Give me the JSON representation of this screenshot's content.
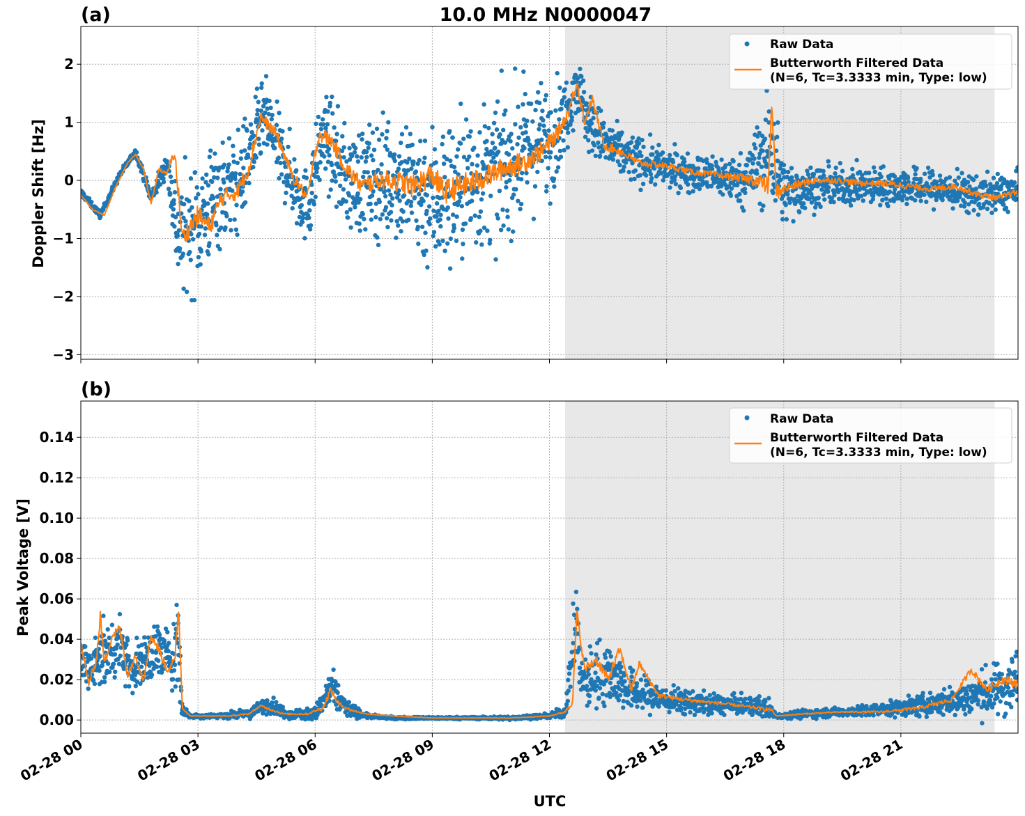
{
  "figure": {
    "title": "10.0 MHz N0000047",
    "xlabel": "UTC"
  },
  "colors": {
    "raw": "#1f77b4",
    "filtered": "#ff7f0e",
    "shade": "#e8e8e8",
    "grid": "#b0b0b0"
  },
  "chart_data": [
    {
      "type": "scatter",
      "panel_label": "(a)",
      "ylabel": "Doppler Shift [Hz]",
      "xlim": [
        0,
        24
      ],
      "ylim": [
        -3.08,
        2.65
      ],
      "x_ticks": [
        0,
        3,
        6,
        9,
        12,
        15,
        18,
        21
      ],
      "x_ticklabels": [],
      "y_ticks": [
        2,
        1,
        0,
        -1,
        -2,
        -3
      ],
      "y_ticklabels": [
        "2",
        "1",
        "0",
        "−1",
        "−2",
        "−3"
      ],
      "shaded_x_range": [
        12.4,
        23.4
      ],
      "grid": true,
      "legend_position": "upper right",
      "legend": [
        "Raw Data",
        "Butterworth Filtered Data",
        "(N=6, Tc=3.3333 min, Type: low)"
      ],
      "series": [
        {
          "name": "Raw Data",
          "style": "points",
          "x": [
            0,
            0.5,
            1,
            1.4,
            1.8,
            2.2,
            2.5,
            3.0,
            3.5,
            4.0,
            4.7,
            5.2,
            5.8,
            6.2,
            6.8,
            7.5,
            8.0,
            8.5,
            9.0,
            9.5,
            10.0,
            10.5,
            11.0,
            11.5,
            12.0,
            12.4,
            12.7,
            13.0,
            13.5,
            14.0,
            15.0,
            16.0,
            17.0,
            17.7,
            18.0,
            19.0,
            20.0,
            21.0,
            22.0,
            23.0,
            24.0
          ],
          "center": [
            -0.2,
            -0.6,
            0.1,
            0.5,
            -0.3,
            0.3,
            -1.0,
            -0.7,
            -0.2,
            -0.1,
            1.1,
            0.3,
            -0.5,
            0.8,
            0.0,
            0.0,
            0.1,
            -0.1,
            -0.3,
            -0.2,
            0.0,
            0.1,
            0.3,
            0.6,
            0.7,
            1.1,
            1.7,
            1.0,
            0.6,
            0.4,
            0.2,
            0.1,
            0.0,
            0.6,
            -0.2,
            -0.1,
            -0.1,
            -0.1,
            -0.15,
            -0.25,
            -0.2
          ],
          "spread": [
            0.05,
            0.05,
            0.05,
            0.05,
            0.1,
            0.2,
            0.9,
            1.0,
            0.9,
            0.8,
            0.6,
            0.6,
            0.6,
            0.7,
            0.8,
            0.9,
            1.0,
            1.1,
            1.2,
            1.2,
            1.2,
            1.1,
            1.1,
            1.0,
            0.9,
            0.6,
            0.5,
            0.5,
            0.4,
            0.4,
            0.3,
            0.3,
            0.4,
            1.0,
            0.5,
            0.3,
            0.3,
            0.3,
            0.3,
            0.3,
            0.3
          ]
        },
        {
          "name": "Butterworth Filtered Data",
          "style": "line",
          "x": [
            0,
            0.3,
            0.6,
            0.9,
            1.2,
            1.4,
            1.6,
            1.8,
            2.0,
            2.2,
            2.4,
            2.6,
            3.0,
            3.3,
            3.6,
            4.0,
            4.3,
            4.6,
            5.0,
            5.4,
            5.8,
            6.1,
            6.4,
            6.8,
            7.2,
            7.6,
            8.0,
            8.5,
            9.0,
            9.3,
            9.7,
            10.2,
            10.8,
            11.3,
            11.8,
            12.2,
            12.5,
            12.7,
            12.9,
            13.1,
            13.4,
            13.8,
            14.3,
            15.0,
            15.6,
            16.2,
            16.8,
            17.3,
            17.6,
            17.7,
            17.8,
            18.2,
            18.8,
            19.4,
            20.0,
            20.6,
            21.2,
            21.8,
            22.4,
            23.0,
            23.5,
            24.0
          ],
          "y": [
            -0.25,
            -0.5,
            -0.6,
            -0.1,
            0.3,
            0.45,
            0.2,
            -0.4,
            0.2,
            0.1,
            0.5,
            -1.0,
            -0.6,
            -0.8,
            -0.3,
            -0.2,
            0.2,
            1.1,
            0.8,
            0.1,
            -0.3,
            0.8,
            0.7,
            0.2,
            -0.1,
            0.0,
            0.0,
            -0.1,
            0.1,
            -0.2,
            -0.1,
            0.0,
            0.2,
            0.3,
            0.5,
            0.8,
            1.2,
            1.7,
            1.0,
            1.4,
            0.6,
            0.5,
            0.3,
            0.25,
            0.15,
            0.1,
            0.05,
            0.0,
            -0.1,
            1.3,
            -0.2,
            -0.1,
            0.0,
            0.0,
            -0.05,
            -0.05,
            -0.1,
            -0.15,
            -0.1,
            -0.25,
            -0.3,
            -0.2
          ]
        }
      ]
    },
    {
      "type": "scatter",
      "panel_label": "(b)",
      "ylabel": "Peak Voltage [V]",
      "xlim": [
        0,
        24
      ],
      "ylim": [
        -0.0065,
        0.158
      ],
      "x_ticks": [
        0,
        3,
        6,
        9,
        12,
        15,
        18,
        21
      ],
      "x_ticklabels": [
        "02-28 00",
        "02-28 03",
        "02-28 06",
        "02-28 09",
        "02-28 12",
        "02-28 15",
        "02-28 18",
        "02-28 21"
      ],
      "y_ticks": [
        0.0,
        0.02,
        0.04,
        0.06,
        0.08,
        0.1,
        0.12,
        0.14
      ],
      "y_ticklabels": [
        "0.00",
        "0.02",
        "0.04",
        "0.06",
        "0.08",
        "0.10",
        "0.12",
        "0.14"
      ],
      "shaded_x_range": [
        12.4,
        23.4
      ],
      "grid": true,
      "legend_position": "upper right",
      "legend": [
        "Raw Data",
        "Butterworth Filtered Data",
        "(N=6, Tc=3.3333 min, Type: low)"
      ],
      "series": [
        {
          "name": "Raw Data",
          "style": "points",
          "x": [
            0,
            0.3,
            0.5,
            0.7,
            1.0,
            1.3,
            1.7,
            2.0,
            2.3,
            2.5,
            2.6,
            2.8,
            3.5,
            4.3,
            4.8,
            5.3,
            6.0,
            6.4,
            6.8,
            7.3,
            8.0,
            9.0,
            10.0,
            11.0,
            12.0,
            12.4,
            12.7,
            12.8,
            13.0,
            13.5,
            14.0,
            14.5,
            15.0,
            16.0,
            17.0,
            17.6,
            17.8,
            18.5,
            19.5,
            20.5,
            21.5,
            22.5,
            23.0,
            23.5,
            24.0
          ],
          "center": [
            0.03,
            0.025,
            0.035,
            0.03,
            0.04,
            0.025,
            0.03,
            0.035,
            0.03,
            0.04,
            0.005,
            0.002,
            0.002,
            0.003,
            0.008,
            0.003,
            0.003,
            0.015,
            0.006,
            0.002,
            0.001,
            0.001,
            0.001,
            0.001,
            0.002,
            0.004,
            0.05,
            0.02,
            0.02,
            0.025,
            0.015,
            0.012,
            0.01,
            0.008,
            0.007,
            0.006,
            0.002,
            0.003,
            0.004,
            0.005,
            0.007,
            0.01,
            0.013,
            0.015,
            0.02
          ],
          "spread": [
            0.01,
            0.01,
            0.02,
            0.015,
            0.015,
            0.01,
            0.012,
            0.015,
            0.01,
            0.03,
            0.003,
            0.001,
            0.001,
            0.002,
            0.004,
            0.002,
            0.003,
            0.01,
            0.004,
            0.001,
            0.0005,
            0.0005,
            0.0005,
            0.0008,
            0.001,
            0.003,
            0.02,
            0.01,
            0.015,
            0.015,
            0.01,
            0.008,
            0.006,
            0.005,
            0.004,
            0.005,
            0.001,
            0.002,
            0.002,
            0.003,
            0.005,
            0.007,
            0.01,
            0.012,
            0.015
          ]
        },
        {
          "name": "Butterworth Filtered Data",
          "style": "line",
          "x": [
            0,
            0.2,
            0.4,
            0.5,
            0.6,
            0.8,
            1.0,
            1.2,
            1.4,
            1.6,
            1.8,
            2.0,
            2.2,
            2.4,
            2.5,
            2.6,
            2.8,
            3.2,
            3.8,
            4.3,
            4.6,
            4.9,
            5.2,
            5.8,
            6.2,
            6.4,
            6.6,
            6.9,
            7.3,
            8.0,
            9.0,
            10.0,
            11.0,
            12.0,
            12.4,
            12.6,
            12.7,
            12.9,
            13.2,
            13.5,
            13.8,
            14.1,
            14.3,
            14.8,
            15.5,
            16.5,
            17.3,
            17.7,
            17.8,
            18.5,
            19.5,
            20.5,
            21.5,
            22.3,
            22.8,
            23.2,
            23.6,
            24.0
          ],
          "y": [
            0.038,
            0.018,
            0.03,
            0.052,
            0.028,
            0.042,
            0.045,
            0.022,
            0.032,
            0.02,
            0.042,
            0.035,
            0.025,
            0.028,
            0.057,
            0.006,
            0.002,
            0.002,
            0.002,
            0.003,
            0.007,
            0.005,
            0.003,
            0.003,
            0.006,
            0.015,
            0.008,
            0.005,
            0.003,
            0.002,
            0.001,
            0.001,
            0.001,
            0.002,
            0.004,
            0.01,
            0.053,
            0.025,
            0.03,
            0.02,
            0.035,
            0.015,
            0.028,
            0.012,
            0.01,
            0.008,
            0.006,
            0.005,
            0.002,
            0.003,
            0.004,
            0.004,
            0.006,
            0.01,
            0.025,
            0.015,
            0.02,
            0.018
          ]
        }
      ]
    }
  ]
}
